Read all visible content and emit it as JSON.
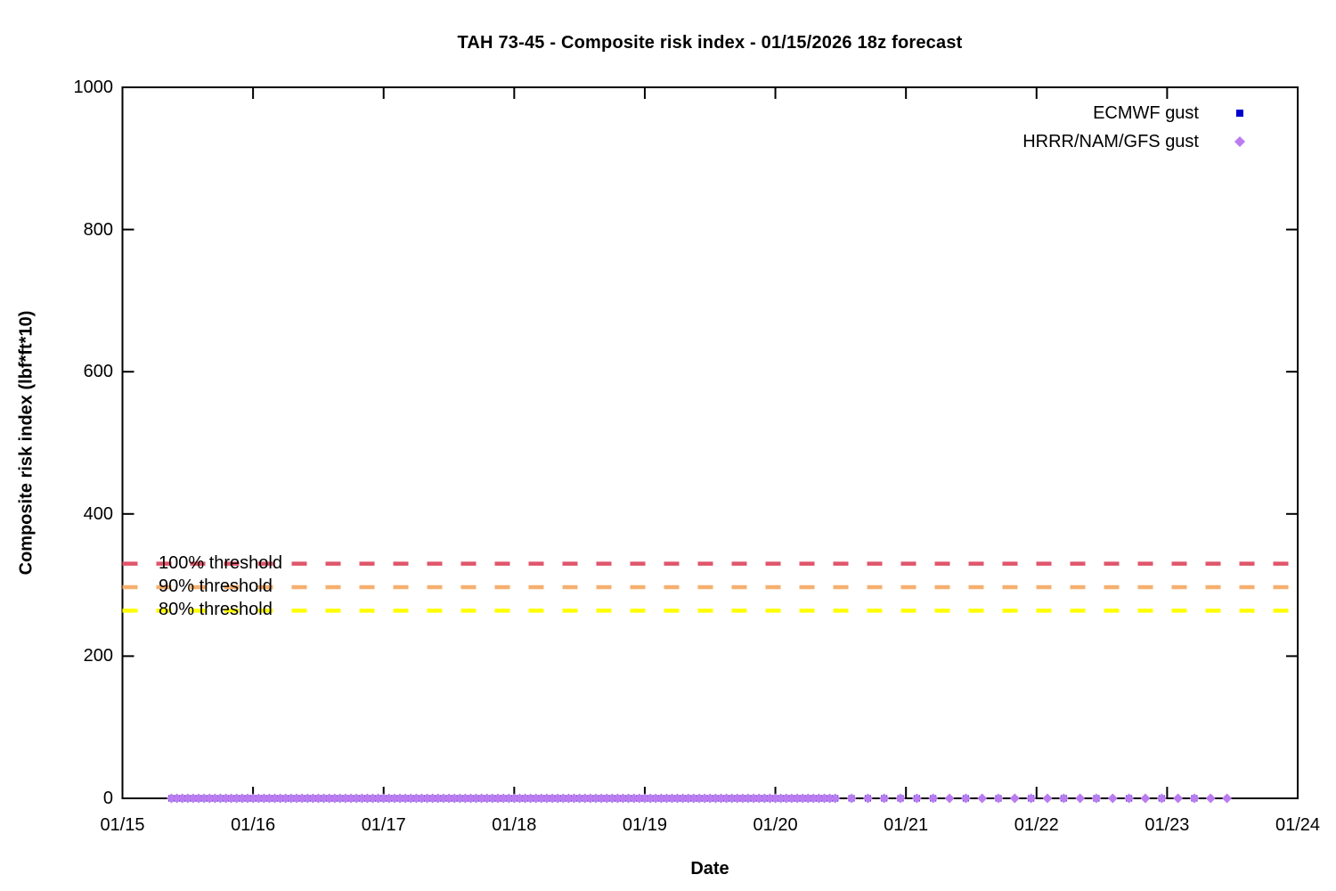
{
  "chart_data": {
    "type": "scatter",
    "title": "TAH 73-45 - Composite risk index - 01/15/2026 18z forecast",
    "xlabel": "Date",
    "ylabel": "Composite risk index (lbf*ft*10)",
    "x_tick_labels": [
      "01/15",
      "01/16",
      "01/17",
      "01/18",
      "01/19",
      "01/20",
      "01/21",
      "01/22",
      "01/23",
      "01/24"
    ],
    "x_axis_span_days": 9,
    "y_ticks": [
      0,
      200,
      400,
      600,
      800,
      1000
    ],
    "ylim": [
      0,
      1000
    ],
    "grid": false,
    "legend_position": "top-right-inside",
    "series": [
      {
        "name": "ECMWF gust",
        "marker": "square",
        "color": "#0000CC",
        "value_all_points": 0,
        "time_segments_hours_from_0115_00z": [
          {
            "start": 9,
            "end": 131,
            "step": 1
          },
          {
            "start": 134,
            "end": 149,
            "step": 3
          },
          {
            "start": 155,
            "end": 197,
            "step": 6
          }
        ]
      },
      {
        "name": "HRRR/NAM/GFS gust",
        "marker": "diamond",
        "color": "#BB7CF0",
        "value_all_points": 0,
        "time_segments_hours_from_0115_00z": [
          {
            "start": 9,
            "end": 131,
            "step": 1
          },
          {
            "start": 134,
            "end": 203,
            "step": 3
          }
        ]
      }
    ],
    "threshold_lines": [
      {
        "label": "100% threshold",
        "value": 330,
        "color": "#E0566B",
        "style": "dashed"
      },
      {
        "label": "90% threshold",
        "value": 297,
        "color": "#F6AF6E",
        "style": "dashed"
      },
      {
        "label": "80% threshold",
        "value": 264,
        "color": "#FFFF00",
        "style": "dashed"
      }
    ],
    "axis_color": "#000000"
  }
}
